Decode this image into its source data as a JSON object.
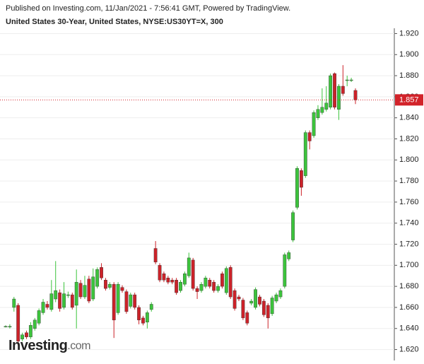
{
  "chart_data": {
    "type": "candlestick",
    "published": "Published on Investing.com, 11/Jan/2021 - 7:56:41 GMT, Powered by TradingView.",
    "title": "United States 30-Year, United States, NYSE:US30YT=X, 300",
    "logo": {
      "name": "Investing",
      "suffix": ".com"
    },
    "up_color": "#3cc43c",
    "down_color": "#cc2229",
    "last_price": 1.857,
    "last_price_color": "#d2232a",
    "ylim": [
      1.613,
      1.925
    ],
    "yticks": [
      {
        "value": 1.62,
        "label": "1.620"
      },
      {
        "value": 1.64,
        "label": "1.640"
      },
      {
        "value": 1.66,
        "label": "1.660"
      },
      {
        "value": 1.68,
        "label": "1.680"
      },
      {
        "value": 1.7,
        "label": "1.700"
      },
      {
        "value": 1.72,
        "label": "1.720"
      },
      {
        "value": 1.74,
        "label": "1.740"
      },
      {
        "value": 1.76,
        "label": "1.760"
      },
      {
        "value": 1.78,
        "label": "1.780"
      },
      {
        "value": 1.8,
        "label": "1.800"
      },
      {
        "value": 1.82,
        "label": "1.820"
      },
      {
        "value": 1.84,
        "label": "1.840"
      },
      {
        "value": 1.86,
        "label": "1.860"
      },
      {
        "value": 1.88,
        "label": "1.880"
      },
      {
        "value": 1.9,
        "label": "1.900"
      },
      {
        "value": 1.92,
        "label": "1.920"
      }
    ],
    "grid": true,
    "open": [
      1.642,
      1.642,
      1.66,
      1.662,
      1.63,
      1.636,
      1.632,
      1.64,
      1.645,
      1.655,
      1.663,
      1.658,
      1.668,
      1.674,
      1.66,
      1.672,
      1.672,
      1.662,
      1.683,
      1.67,
      1.687,
      1.668,
      1.68,
      1.698,
      1.686,
      1.679,
      1.682,
      1.655,
      1.679,
      1.675,
      1.661,
      1.672,
      1.66,
      1.65,
      1.646,
      1.658,
      1.716,
      1.7,
      1.692,
      1.688,
      1.686,
      1.686,
      1.676,
      1.682,
      1.69,
      1.705,
      1.678,
      1.676,
      1.68,
      1.686,
      1.684,
      1.676,
      1.692,
      1.674,
      1.698,
      1.676,
      1.67,
      1.667,
      1.655,
      1.664,
      1.66,
      1.67,
      1.666,
      1.662,
      1.654,
      1.666,
      1.67,
      1.68,
      1.706,
      1.724,
      1.755,
      1.79,
      1.785,
      1.826,
      1.823,
      1.84,
      1.845,
      1.848,
      1.85,
      1.882,
      1.848,
      1.87,
      1.876,
      1.876,
      1.866
    ],
    "high": [
      1.643,
      1.644,
      1.67,
      1.664,
      1.636,
      1.638,
      1.646,
      1.65,
      1.659,
      1.668,
      1.666,
      1.686,
      1.704,
      1.677,
      1.684,
      1.675,
      1.674,
      1.696,
      1.686,
      1.69,
      1.69,
      1.697,
      1.698,
      1.702,
      1.688,
      1.684,
      1.684,
      1.684,
      1.681,
      1.677,
      1.674,
      1.674,
      1.662,
      1.652,
      1.657,
      1.665,
      1.723,
      1.702,
      1.694,
      1.69,
      1.688,
      1.688,
      1.686,
      1.694,
      1.712,
      1.707,
      1.68,
      1.684,
      1.69,
      1.688,
      1.686,
      1.682,
      1.694,
      1.699,
      1.7,
      1.678,
      1.672,
      1.669,
      1.657,
      1.668,
      1.679,
      1.672,
      1.668,
      1.664,
      1.671,
      1.674,
      1.678,
      1.712,
      1.714,
      1.752,
      1.794,
      1.792,
      1.828,
      1.828,
      1.847,
      1.852,
      1.868,
      1.87,
      1.882,
      1.883,
      1.872,
      1.89,
      1.88,
      1.878,
      1.868
    ],
    "low": [
      1.641,
      1.64,
      1.656,
      1.624,
      1.628,
      1.63,
      1.63,
      1.638,
      1.643,
      1.653,
      1.658,
      1.656,
      1.665,
      1.656,
      1.658,
      1.669,
      1.658,
      1.64,
      1.668,
      1.668,
      1.664,
      1.666,
      1.678,
      1.686,
      1.676,
      1.677,
      1.631,
      1.653,
      1.674,
      1.654,
      1.659,
      1.658,
      1.644,
      1.643,
      1.64,
      1.656,
      1.701,
      1.684,
      1.684,
      1.682,
      1.682,
      1.672,
      1.674,
      1.68,
      1.688,
      1.676,
      1.668,
      1.674,
      1.678,
      1.678,
      1.674,
      1.674,
      1.678,
      1.672,
      1.668,
      1.657,
      1.666,
      1.648,
      1.643,
      1.662,
      1.658,
      1.661,
      1.651,
      1.64,
      1.652,
      1.664,
      1.668,
      1.678,
      1.704,
      1.722,
      1.753,
      1.766,
      1.783,
      1.81,
      1.821,
      1.838,
      1.843,
      1.846,
      1.848,
      1.848,
      1.838,
      1.861,
      1.87,
      1.874,
      1.853
    ],
    "close": [
      1.642,
      1.642,
      1.668,
      1.628,
      1.634,
      1.632,
      1.643,
      1.648,
      1.657,
      1.665,
      1.66,
      1.673,
      1.676,
      1.659,
      1.673,
      1.672,
      1.66,
      1.684,
      1.67,
      1.681,
      1.666,
      1.689,
      1.696,
      1.688,
      1.678,
      1.682,
      1.648,
      1.682,
      1.676,
      1.656,
      1.672,
      1.66,
      1.648,
      1.645,
      1.655,
      1.663,
      1.703,
      1.686,
      1.686,
      1.684,
      1.684,
      1.674,
      1.684,
      1.692,
      1.707,
      1.678,
      1.675,
      1.682,
      1.688,
      1.68,
      1.676,
      1.68,
      1.68,
      1.697,
      1.67,
      1.659,
      1.668,
      1.65,
      1.645,
      1.666,
      1.677,
      1.663,
      1.653,
      1.65,
      1.669,
      1.672,
      1.676,
      1.71,
      1.712,
      1.75,
      1.792,
      1.774,
      1.826,
      1.818,
      1.845,
      1.848,
      1.85,
      1.854,
      1.88,
      1.85,
      1.87,
      1.863,
      1.876,
      1.876,
      1.857
    ]
  }
}
